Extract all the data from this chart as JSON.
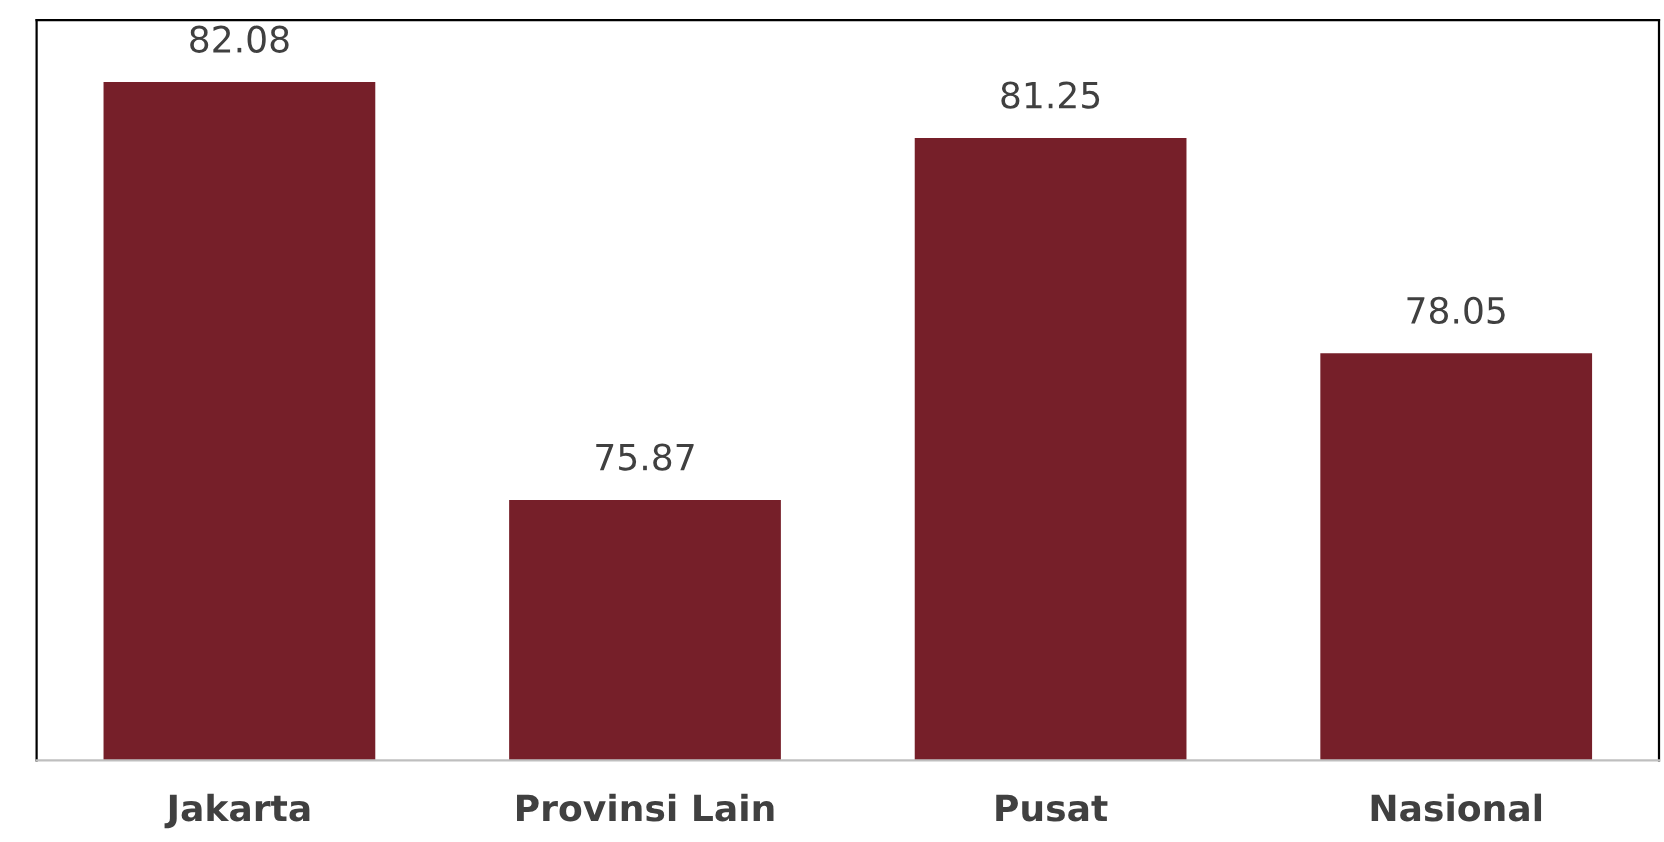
{
  "chart_data": {
    "type": "bar",
    "categories": [
      "Jakarta",
      "Provinsi Lain",
      "Pusat",
      "Nasional"
    ],
    "values": [
      82.08,
      75.87,
      81.25,
      78.05
    ],
    "color": "#761f29",
    "ylim": [
      72,
      83
    ],
    "tick_labels": "x",
    "data_labels": true,
    "grid": false,
    "legend": false
  }
}
